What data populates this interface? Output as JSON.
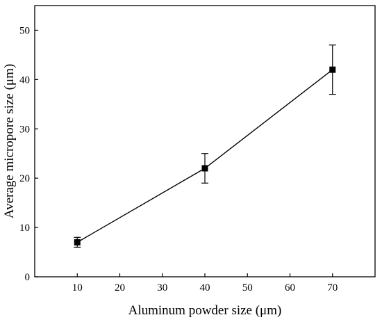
{
  "chart_data": {
    "type": "line",
    "xlabel": "Aluminum powder size (μm)",
    "ylabel": "Average micropore size (μm)",
    "xlim": [
      0,
      80
    ],
    "ylim": [
      0,
      55
    ],
    "x_ticks": [
      10,
      20,
      30,
      40,
      50,
      60,
      70
    ],
    "y_ticks": [
      0,
      10,
      20,
      30,
      40,
      50
    ],
    "grid": false,
    "legend": "none",
    "marker": "square",
    "series": [
      {
        "x": [
          10,
          40,
          70
        ],
        "y": [
          7,
          22,
          42
        ],
        "error": [
          1,
          3,
          5
        ],
        "color": "#000000"
      }
    ]
  }
}
